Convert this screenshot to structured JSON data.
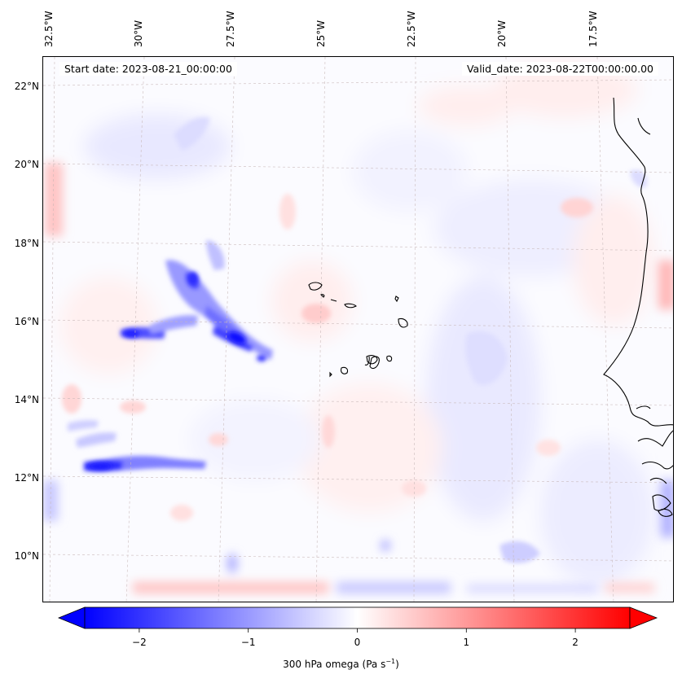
{
  "map": {
    "start_date": "Start date: 2023-08-21_00:00:00",
    "valid_date": "Valid_date: 2023-08-22T00:00:00.00",
    "lon_labels": [
      "32.5°W",
      "30°W",
      "27.5°W",
      "25°W",
      "22.5°W",
      "20°W",
      "17.5°W"
    ],
    "lat_labels": [
      "22°N",
      "20°N",
      "18°N",
      "16°N",
      "14°N",
      "12°N",
      "10°N"
    ],
    "field": "300 hPa omega",
    "colormap": [
      "#0000ff",
      "#ffffff",
      "#ff0000"
    ]
  },
  "colorbar": {
    "ticks": [
      "−2",
      "−1",
      "0",
      "1",
      "2"
    ],
    "tick_values": [
      -2,
      -1,
      0,
      1,
      2
    ],
    "range": [
      -2.5,
      2.5
    ],
    "title_main": "300 hPa omega (Pa s",
    "title_sup": "−1",
    "title_end": ")"
  }
}
